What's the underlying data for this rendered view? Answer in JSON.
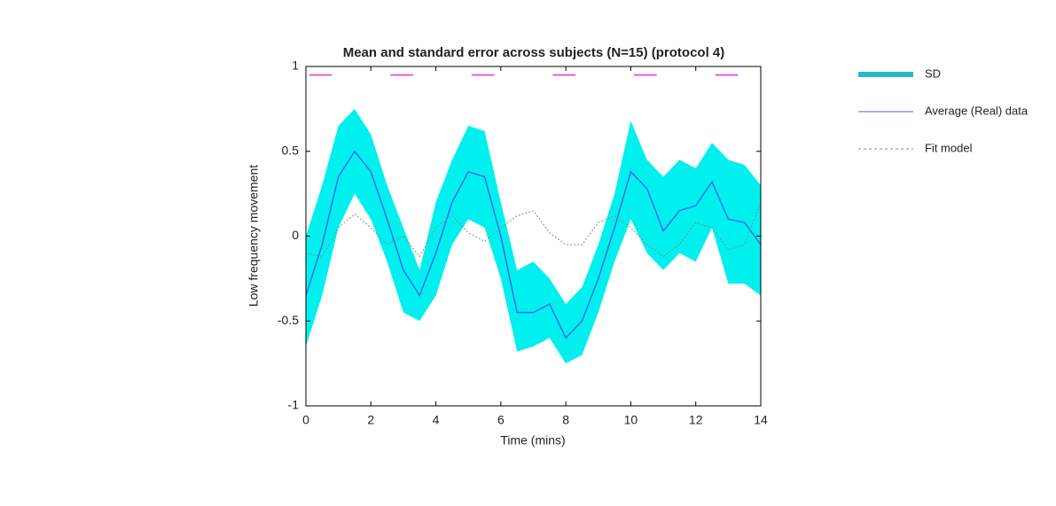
{
  "chart_data": {
    "type": "line",
    "title": "Mean and standard error across subjects (N=15) (protocol 4)",
    "x_label": "Time (mins)",
    "y_label": "Low frequency movement",
    "x": [
      0,
      0.5,
      1,
      1.5,
      2,
      2.5,
      3,
      3.5,
      4,
      4.5,
      5,
      5.5,
      6,
      6.5,
      7,
      7.5,
      8,
      8.5,
      9,
      9.5,
      10,
      10.5,
      11,
      11.5,
      12,
      12.5,
      13,
      13.5,
      14
    ],
    "band": {
      "name": "SD",
      "color": "#00f0f0",
      "upper": [
        0.0,
        0.3,
        0.65,
        0.75,
        0.6,
        0.3,
        0.05,
        -0.2,
        0.2,
        0.45,
        0.65,
        0.62,
        0.2,
        -0.2,
        -0.15,
        -0.25,
        -0.4,
        -0.3,
        -0.05,
        0.25,
        0.68,
        0.45,
        0.35,
        0.45,
        0.4,
        0.55,
        0.45,
        0.42,
        0.3
      ],
      "lower": [
        -0.65,
        -0.35,
        0.05,
        0.25,
        0.1,
        -0.15,
        -0.45,
        -0.5,
        -0.35,
        -0.05,
        0.1,
        0.05,
        -0.25,
        -0.68,
        -0.65,
        -0.6,
        -0.75,
        -0.7,
        -0.45,
        -0.15,
        0.1,
        -0.1,
        -0.2,
        -0.1,
        -0.15,
        0.05,
        -0.28,
        -0.28,
        -0.35
      ]
    },
    "series": [
      {
        "name": "Average (Real) data",
        "color": "#3a6fd8",
        "style": "solid",
        "values": [
          -0.35,
          -0.05,
          0.35,
          0.5,
          0.38,
          0.1,
          -0.2,
          -0.35,
          -0.1,
          0.2,
          0.38,
          0.35,
          0.0,
          -0.45,
          -0.45,
          -0.4,
          -0.6,
          -0.5,
          -0.25,
          0.05,
          0.38,
          0.28,
          0.03,
          0.15,
          0.18,
          0.32,
          0.1,
          0.08,
          -0.05
        ]
      },
      {
        "name": "Fit model",
        "color": "#888888",
        "style": "dotted",
        "values": [
          -0.1,
          -0.12,
          0.05,
          0.13,
          0.05,
          -0.05,
          0.0,
          -0.12,
          0.05,
          0.12,
          0.02,
          -0.03,
          0.05,
          0.12,
          0.15,
          0.02,
          -0.05,
          -0.05,
          0.08,
          0.12,
          0.05,
          -0.05,
          -0.12,
          -0.05,
          0.08,
          0.05,
          -0.08,
          -0.05,
          0.2
        ]
      }
    ],
    "stimulus": {
      "color": "#e060e0",
      "y": 0.95,
      "ranges": [
        [
          0.1,
          0.8
        ],
        [
          2.6,
          3.3
        ],
        [
          5.1,
          5.8
        ],
        [
          7.6,
          8.3
        ],
        [
          10.1,
          10.8
        ],
        [
          12.6,
          13.3
        ]
      ]
    },
    "xlim": [
      0,
      14
    ],
    "xticks": [
      0,
      2,
      4,
      6,
      8,
      10,
      12,
      14
    ],
    "ylim": [
      -1,
      1
    ],
    "yticks": [
      -1,
      -0.5,
      0,
      0.5,
      1
    ],
    "legend": "outside-right"
  }
}
